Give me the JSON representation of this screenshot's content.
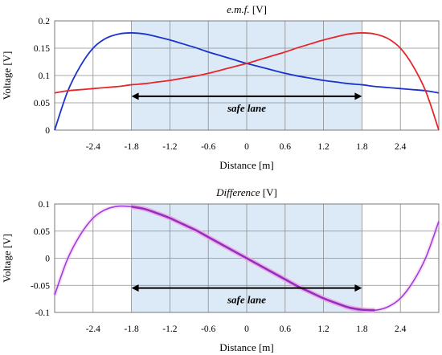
{
  "chart_data": [
    {
      "type": "line",
      "title_main": "e.m.f.",
      "title_unit": " [V]",
      "xlabel": "Distance [m]",
      "ylabel": "Voltage [V]",
      "xlim": [
        -3.0,
        3.0
      ],
      "ylim": [
        0,
        0.2
      ],
      "xticks": [
        -2.4,
        -1.8,
        -1.2,
        -0.6,
        0,
        0.6,
        1.2,
        1.8,
        2.4
      ],
      "xtick_labels": [
        "-2.4",
        "-1.8",
        "-1.2",
        "-0.6",
        "0",
        "0.6",
        "1.2",
        "1.8",
        "2.4"
      ],
      "yticks": [
        0,
        0.05,
        0.1,
        0.15,
        0.2
      ],
      "ytick_labels": [
        "0",
        "0.05",
        "0.1",
        "0.15",
        "0.2"
      ],
      "shaded_region": [
        -1.8,
        1.8
      ],
      "shade_color": "#dceaf7",
      "annotation": {
        "text": "safe lane",
        "x_from": -1.8,
        "x_to": 1.8,
        "y": 0.062
      },
      "series": [
        {
          "color": "#1a33cc",
          "x": [
            -3.0,
            -2.8,
            -2.6,
            -2.4,
            -2.2,
            -2.0,
            -1.8,
            -1.6,
            -1.4,
            -1.2,
            -1.0,
            -0.8,
            -0.6,
            -0.4,
            -0.2,
            0.0,
            0.2,
            0.4,
            0.6,
            0.8,
            1.0,
            1.2,
            1.4,
            1.6,
            1.8,
            2.0,
            2.2,
            2.4,
            2.6,
            2.8,
            3.0
          ],
          "y": [
            0.0,
            0.07,
            0.117,
            0.15,
            0.168,
            0.176,
            0.178,
            0.176,
            0.171,
            0.165,
            0.158,
            0.151,
            0.143,
            0.136,
            0.129,
            0.122,
            0.116,
            0.11,
            0.104,
            0.099,
            0.095,
            0.091,
            0.088,
            0.085,
            0.083,
            0.08,
            0.078,
            0.076,
            0.074,
            0.072,
            0.068
          ]
        },
        {
          "color": "#e6262a",
          "x": [
            -3.0,
            -2.8,
            -2.6,
            -2.4,
            -2.2,
            -2.0,
            -1.8,
            -1.6,
            -1.4,
            -1.2,
            -1.0,
            -0.8,
            -0.6,
            -0.4,
            -0.2,
            0.0,
            0.2,
            0.4,
            0.6,
            0.8,
            1.0,
            1.2,
            1.4,
            1.6,
            1.8,
            2.0,
            2.2,
            2.4,
            2.6,
            2.8,
            3.0
          ],
          "y": [
            0.068,
            0.072,
            0.074,
            0.076,
            0.078,
            0.08,
            0.083,
            0.085,
            0.088,
            0.091,
            0.095,
            0.099,
            0.104,
            0.11,
            0.116,
            0.122,
            0.129,
            0.136,
            0.143,
            0.151,
            0.158,
            0.165,
            0.171,
            0.176,
            0.178,
            0.176,
            0.168,
            0.15,
            0.117,
            0.07,
            0.0
          ]
        }
      ]
    },
    {
      "type": "line",
      "title_main": "Difference",
      "title_unit": " [V]",
      "xlabel": "Distance [m]",
      "ylabel": "Voltage [V]",
      "xlim": [
        -3.0,
        3.0
      ],
      "ylim": [
        -0.1,
        0.1
      ],
      "xticks": [
        -2.4,
        -1.8,
        -1.2,
        -0.6,
        0,
        0.6,
        1.2,
        1.8,
        2.4
      ],
      "xtick_labels": [
        "-2.4",
        "-1.8",
        "-1.2",
        "-0.6",
        "0",
        "0.6",
        "1.2",
        "1.8",
        "2.4"
      ],
      "yticks": [
        -0.1,
        -0.05,
        0,
        0.05,
        0.1
      ],
      "ytick_labels": [
        "-0.1",
        "-0.05",
        "0",
        "0.05",
        "0.1"
      ],
      "shaded_region": [
        -1.8,
        1.8
      ],
      "shade_color": "#dceaf7",
      "annotation": {
        "text": "safe lane",
        "x_from": -1.8,
        "x_to": 1.8,
        "y": -0.055
      },
      "series": [
        {
          "color": "#9b3fe0",
          "highlight_color": "#f3a6e6",
          "highlight_range": [
            -1.95,
            2.05
          ],
          "x": [
            -3.0,
            -2.8,
            -2.6,
            -2.4,
            -2.2,
            -2.0,
            -1.8,
            -1.6,
            -1.4,
            -1.2,
            -1.0,
            -0.8,
            -0.6,
            -0.4,
            -0.2,
            0.0,
            0.2,
            0.4,
            0.6,
            0.8,
            1.0,
            1.2,
            1.4,
            1.6,
            1.8,
            2.0,
            2.2,
            2.4,
            2.6,
            2.8,
            3.0
          ],
          "y": [
            -0.068,
            -0.002,
            0.043,
            0.074,
            0.09,
            0.096,
            0.095,
            0.091,
            0.083,
            0.074,
            0.063,
            0.052,
            0.039,
            0.026,
            0.013,
            0.0,
            -0.013,
            -0.026,
            -0.039,
            -0.052,
            -0.063,
            -0.074,
            -0.083,
            -0.091,
            -0.095,
            -0.096,
            -0.09,
            -0.074,
            -0.043,
            0.002,
            0.068
          ]
        }
      ]
    }
  ]
}
